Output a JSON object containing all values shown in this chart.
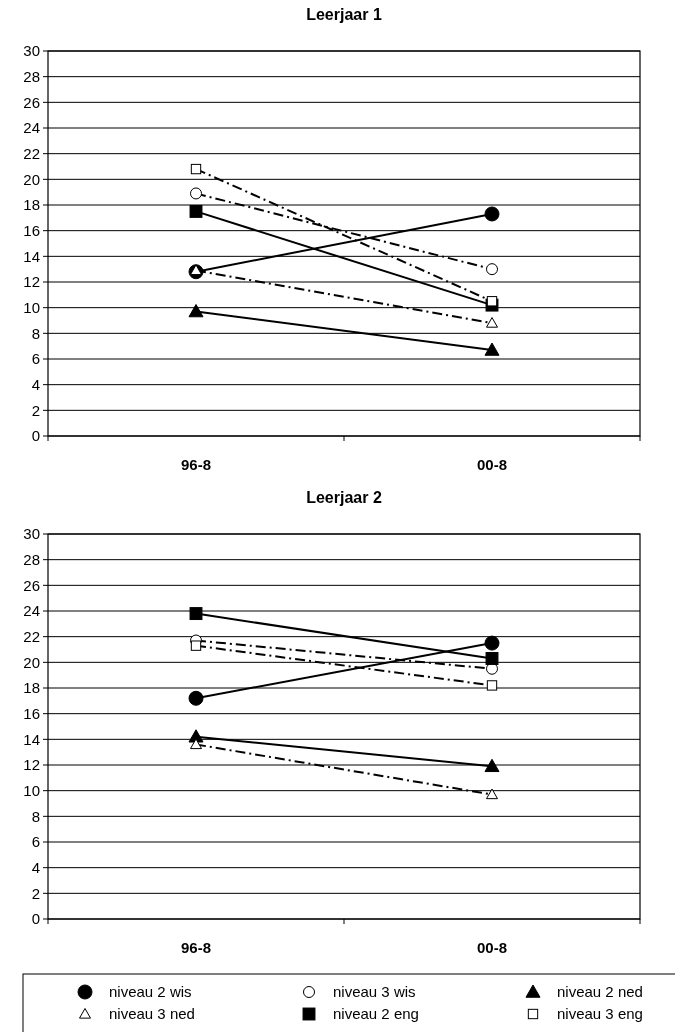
{
  "chart_data": [
    {
      "type": "line",
      "title": "Leerjaar 1",
      "categories": [
        "96-8",
        "00-8"
      ],
      "ylim": [
        0,
        30
      ],
      "yticks": [
        0,
        2,
        4,
        6,
        8,
        10,
        12,
        14,
        16,
        18,
        20,
        22,
        24,
        26,
        28,
        30
      ],
      "grid": "y",
      "series": [
        {
          "color": "#000000",
          "values": [
            12.8,
            17.3
          ],
          "marker": "circle",
          "line_style": "solid"
        },
        {
          "color": "#000000",
          "values": [
            18.9,
            13.0
          ],
          "marker": "circle",
          "line_style": "dashed"
        },
        {
          "color": "#000000",
          "values": [
            9.7,
            6.7
          ],
          "marker": "triangle",
          "line_style": "solid"
        },
        {
          "color": "#000000",
          "values": [
            12.9,
            8.8
          ],
          "marker": "triangle",
          "line_style": "dashed"
        },
        {
          "color": "#000000",
          "values": [
            17.5,
            10.2
          ],
          "marker": "square",
          "line_style": "solid"
        },
        {
          "color": "#000000",
          "values": [
            20.8,
            10.5
          ],
          "marker": "square",
          "line_style": "dashed"
        }
      ]
    },
    {
      "type": "line",
      "title": "Leerjaar 2",
      "categories": [
        "96-8",
        "00-8"
      ],
      "ylim": [
        0,
        30
      ],
      "yticks": [
        0,
        2,
        4,
        6,
        8,
        10,
        12,
        14,
        16,
        18,
        20,
        22,
        24,
        26,
        28,
        30
      ],
      "grid": "y",
      "legend": "bottom",
      "series": [
        {
          "name": "niveau 2 wis",
          "color": "#000000",
          "values": [
            17.2,
            21.5
          ],
          "marker": "circle",
          "line_style": "solid"
        },
        {
          "name": "niveau 3 wis",
          "color": "#000000",
          "values": [
            21.7,
            19.5
          ],
          "marker": "circle",
          "line_style": "dashed"
        },
        {
          "name": "niveau 2 ned",
          "color": "#000000",
          "values": [
            14.2,
            11.9
          ],
          "marker": "triangle",
          "line_style": "solid"
        },
        {
          "name": "niveau 3 ned",
          "color": "#000000",
          "values": [
            13.6,
            9.7
          ],
          "marker": "triangle",
          "line_style": "dashed"
        },
        {
          "name": "niveau 2 eng",
          "color": "#000000",
          "values": [
            23.8,
            20.3
          ],
          "marker": "square",
          "line_style": "solid"
        },
        {
          "name": "niveau 3 eng",
          "color": "#000000",
          "values": [
            21.3,
            18.2
          ],
          "marker": "square",
          "line_style": "dashed"
        }
      ]
    }
  ]
}
